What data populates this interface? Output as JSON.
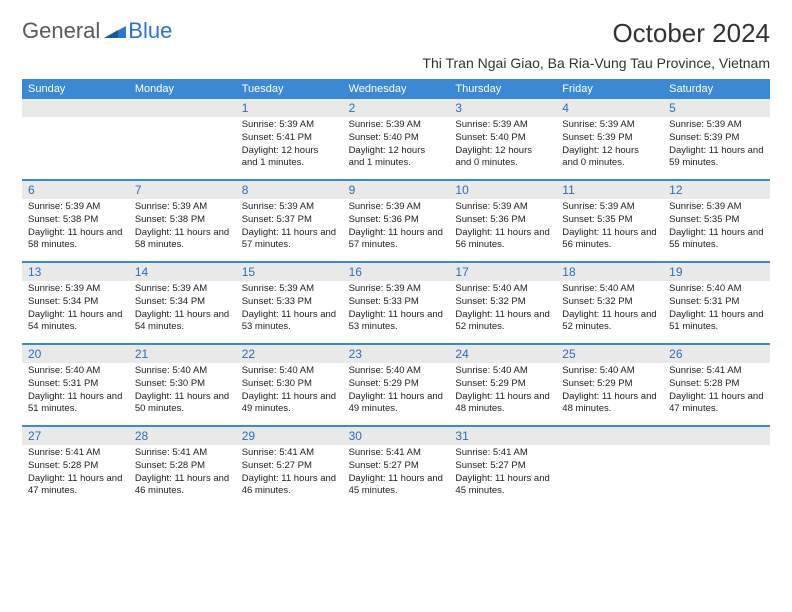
{
  "logo": {
    "part1": "General",
    "part2": "Blue"
  },
  "title": "October 2024",
  "location": "Thi Tran Ngai Giao, Ba Ria-Vung Tau Province, Vietnam",
  "colors": {
    "header_bg": "#3b88d4",
    "daynum_bg": "#e9e9e9",
    "daynum_color": "#2e6eb5",
    "logo_gray": "#5a5a5a",
    "logo_blue": "#2e75c6",
    "week_border": "#3b88d4",
    "text": "#222222",
    "background": "#ffffff"
  },
  "fonts": {
    "title_size_pt": 20,
    "location_size_pt": 11,
    "weekday_size_pt": 8.5,
    "daynum_size_pt": 9,
    "body_size_pt": 7.5
  },
  "weekdays": [
    "Sunday",
    "Monday",
    "Tuesday",
    "Wednesday",
    "Thursday",
    "Friday",
    "Saturday"
  ],
  "weeks": [
    [
      null,
      null,
      {
        "n": "1",
        "sr": "5:39 AM",
        "ss": "5:41 PM",
        "dl": "12 hours and 1 minutes."
      },
      {
        "n": "2",
        "sr": "5:39 AM",
        "ss": "5:40 PM",
        "dl": "12 hours and 1 minutes."
      },
      {
        "n": "3",
        "sr": "5:39 AM",
        "ss": "5:40 PM",
        "dl": "12 hours and 0 minutes."
      },
      {
        "n": "4",
        "sr": "5:39 AM",
        "ss": "5:39 PM",
        "dl": "12 hours and 0 minutes."
      },
      {
        "n": "5",
        "sr": "5:39 AM",
        "ss": "5:39 PM",
        "dl": "11 hours and 59 minutes."
      }
    ],
    [
      {
        "n": "6",
        "sr": "5:39 AM",
        "ss": "5:38 PM",
        "dl": "11 hours and 58 minutes."
      },
      {
        "n": "7",
        "sr": "5:39 AM",
        "ss": "5:38 PM",
        "dl": "11 hours and 58 minutes."
      },
      {
        "n": "8",
        "sr": "5:39 AM",
        "ss": "5:37 PM",
        "dl": "11 hours and 57 minutes."
      },
      {
        "n": "9",
        "sr": "5:39 AM",
        "ss": "5:36 PM",
        "dl": "11 hours and 57 minutes."
      },
      {
        "n": "10",
        "sr": "5:39 AM",
        "ss": "5:36 PM",
        "dl": "11 hours and 56 minutes."
      },
      {
        "n": "11",
        "sr": "5:39 AM",
        "ss": "5:35 PM",
        "dl": "11 hours and 56 minutes."
      },
      {
        "n": "12",
        "sr": "5:39 AM",
        "ss": "5:35 PM",
        "dl": "11 hours and 55 minutes."
      }
    ],
    [
      {
        "n": "13",
        "sr": "5:39 AM",
        "ss": "5:34 PM",
        "dl": "11 hours and 54 minutes."
      },
      {
        "n": "14",
        "sr": "5:39 AM",
        "ss": "5:34 PM",
        "dl": "11 hours and 54 minutes."
      },
      {
        "n": "15",
        "sr": "5:39 AM",
        "ss": "5:33 PM",
        "dl": "11 hours and 53 minutes."
      },
      {
        "n": "16",
        "sr": "5:39 AM",
        "ss": "5:33 PM",
        "dl": "11 hours and 53 minutes."
      },
      {
        "n": "17",
        "sr": "5:40 AM",
        "ss": "5:32 PM",
        "dl": "11 hours and 52 minutes."
      },
      {
        "n": "18",
        "sr": "5:40 AM",
        "ss": "5:32 PM",
        "dl": "11 hours and 52 minutes."
      },
      {
        "n": "19",
        "sr": "5:40 AM",
        "ss": "5:31 PM",
        "dl": "11 hours and 51 minutes."
      }
    ],
    [
      {
        "n": "20",
        "sr": "5:40 AM",
        "ss": "5:31 PM",
        "dl": "11 hours and 51 minutes."
      },
      {
        "n": "21",
        "sr": "5:40 AM",
        "ss": "5:30 PM",
        "dl": "11 hours and 50 minutes."
      },
      {
        "n": "22",
        "sr": "5:40 AM",
        "ss": "5:30 PM",
        "dl": "11 hours and 49 minutes."
      },
      {
        "n": "23",
        "sr": "5:40 AM",
        "ss": "5:29 PM",
        "dl": "11 hours and 49 minutes."
      },
      {
        "n": "24",
        "sr": "5:40 AM",
        "ss": "5:29 PM",
        "dl": "11 hours and 48 minutes."
      },
      {
        "n": "25",
        "sr": "5:40 AM",
        "ss": "5:29 PM",
        "dl": "11 hours and 48 minutes."
      },
      {
        "n": "26",
        "sr": "5:41 AM",
        "ss": "5:28 PM",
        "dl": "11 hours and 47 minutes."
      }
    ],
    [
      {
        "n": "27",
        "sr": "5:41 AM",
        "ss": "5:28 PM",
        "dl": "11 hours and 47 minutes."
      },
      {
        "n": "28",
        "sr": "5:41 AM",
        "ss": "5:28 PM",
        "dl": "11 hours and 46 minutes."
      },
      {
        "n": "29",
        "sr": "5:41 AM",
        "ss": "5:27 PM",
        "dl": "11 hours and 46 minutes."
      },
      {
        "n": "30",
        "sr": "5:41 AM",
        "ss": "5:27 PM",
        "dl": "11 hours and 45 minutes."
      },
      {
        "n": "31",
        "sr": "5:41 AM",
        "ss": "5:27 PM",
        "dl": "11 hours and 45 minutes."
      },
      null,
      null
    ]
  ],
  "labels": {
    "sunrise": "Sunrise:",
    "sunset": "Sunset:",
    "daylight": "Daylight:"
  }
}
